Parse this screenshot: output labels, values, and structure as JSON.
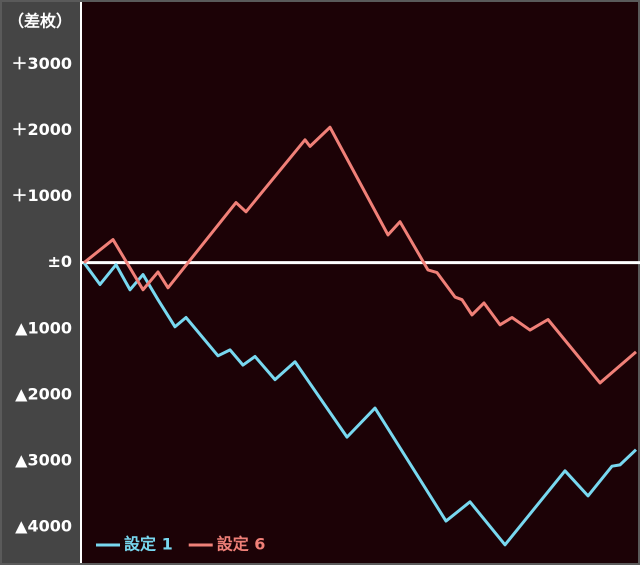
{
  "chart_data": {
    "type": "line",
    "y_label": "（差枚）",
    "ylim": [
      -4500,
      3900
    ],
    "yticks": [
      {
        "value": 3000,
        "label": "＋3000"
      },
      {
        "value": 2000,
        "label": "＋2000"
      },
      {
        "value": 1000,
        "label": "＋1000"
      },
      {
        "value": 0,
        "label": "±0"
      },
      {
        "value": -1000,
        "label": "▲1000"
      },
      {
        "value": -2000,
        "label": "▲2000"
      },
      {
        "value": -3000,
        "label": "▲3000"
      },
      {
        "value": -4000,
        "label": "▲4000"
      }
    ],
    "xlim": [
      0,
      558
    ],
    "zero_line": true,
    "legend": "bottom-left",
    "series": [
      {
        "name": "設定 1",
        "color": "#78d8f0",
        "x": [
          2,
          18,
          34,
          48,
          61,
          76,
          93,
          104,
          136,
          148,
          161,
          173,
          193,
          213,
          265,
          293,
          364,
          388,
          423,
          483,
          506,
          530,
          538,
          554
        ],
        "values": [
          0,
          -330,
          -30,
          -410,
          -180,
          -560,
          -970,
          -830,
          -1410,
          -1320,
          -1550,
          -1420,
          -1770,
          -1500,
          -2640,
          -2200,
          -3910,
          -3620,
          -4270,
          -3150,
          -3530,
          -3080,
          -3060,
          -2830
        ]
      },
      {
        "name": "設定 6",
        "color": "#f08078",
        "x": [
          2,
          31,
          61,
          76,
          86,
          154,
          164,
          223,
          228,
          248,
          306,
          318,
          346,
          355,
          373,
          380,
          390,
          402,
          418,
          430,
          448,
          466,
          518,
          554
        ],
        "values": [
          0,
          350,
          -410,
          -140,
          -380,
          910,
          770,
          1860,
          1760,
          2050,
          420,
          620,
          -110,
          -150,
          -520,
          -560,
          -790,
          -610,
          -940,
          -830,
          -1020,
          -860,
          -1820,
          -1350
        ]
      }
    ]
  }
}
